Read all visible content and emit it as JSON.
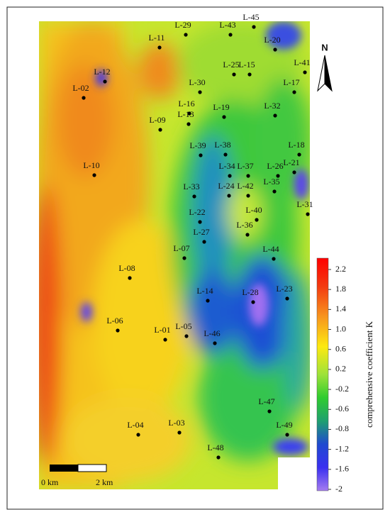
{
  "map": {
    "wells": [
      "L-29",
      "L-43",
      "L-45",
      "L-20",
      "L-11",
      "L-12",
      "L-02",
      "L-25",
      "L-15",
      "L-41",
      "L-17",
      "L-30",
      "L-16",
      "L-19",
      "L-32",
      "L-09",
      "L-13",
      "L-39",
      "L-38",
      "L-18",
      "L-21",
      "L-10",
      "L-34",
      "L-37",
      "L-26",
      "L-24",
      "L-42",
      "L-35",
      "L-33",
      "L-31",
      "L-40",
      "L-22",
      "L-36",
      "L-27",
      "L-07",
      "L-44",
      "L-08",
      "L-14",
      "L-28",
      "L-23",
      "L-06",
      "L-01",
      "L-05",
      "L-46",
      "L-47",
      "L-04",
      "L-03",
      "L-49",
      "L-48"
    ],
    "legend": {
      "title": "comprehensive coefficient K",
      "ticks": [
        2.2,
        1.8,
        1.4,
        {
          "value": 1,
          "label": "1.0"
        },
        0.6,
        0.2,
        -0.2,
        -0.6,
        -0.8,
        -1.2,
        -1.6,
        -2
      ]
    },
    "scale_bar": {
      "labels": [
        "0 km",
        "2 km"
      ]
    },
    "north": "N"
  }
}
